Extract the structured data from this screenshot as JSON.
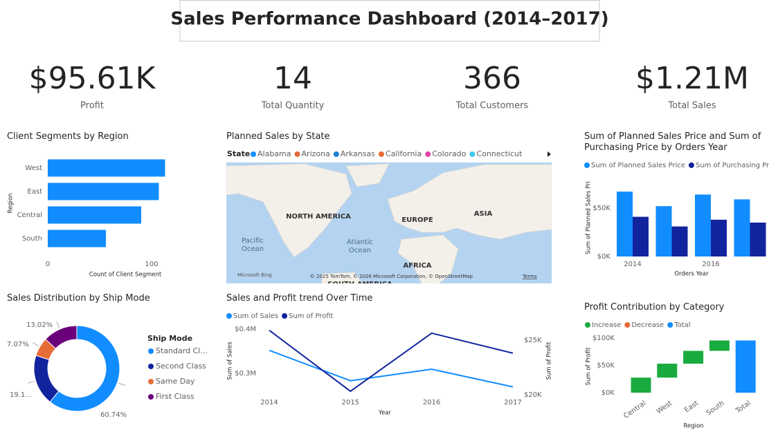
{
  "header": {
    "title": "Sales Performance Dashboard (2014–2017)"
  },
  "kpis": [
    {
      "value": "$95.61K",
      "label": "Profit"
    },
    {
      "value": "14",
      "label": "Total Quantity"
    },
    {
      "value": "366",
      "label": "Total Customers"
    },
    {
      "value": "$1.21M",
      "label": "Total Sales"
    }
  ],
  "map": {
    "title": "Planned Sales by State",
    "legend_title": "State",
    "legend": [
      {
        "name": "Alabama",
        "color": "#118dff"
      },
      {
        "name": "Arizona",
        "color": "#e66c37"
      },
      {
        "name": "Arkansas",
        "color": "#1b7fd6"
      },
      {
        "name": "California",
        "color": "#e66c37"
      },
      {
        "name": "Colorado",
        "color": "#e044a7"
      },
      {
        "name": "Connecticut",
        "color": "#41c8f0"
      }
    ],
    "labels": {
      "north_america": "NORTH AMERICA",
      "europe": "EUROPE",
      "asia": "ASIA",
      "pacific": [
        "Pacific",
        "Ocean"
      ],
      "atlantic": [
        "Atlantic",
        "Ocean"
      ],
      "africa": "AFRICA",
      "south_america": "SOUTH AMERICA"
    },
    "logo": "Microsoft Bing",
    "attribution": "© 2025 TomTom, © 2026 Microsoft Corporation, © OpenStreetMap",
    "terms": "Terms"
  },
  "chart_data": [
    {
      "type": "hbar",
      "title": "Client Segments by Region",
      "categories": [
        "West",
        "East",
        "Central",
        "South"
      ],
      "values": [
        113,
        107,
        90,
        56
      ],
      "color": "#118dff",
      "xlim": [
        0,
        115
      ],
      "xticks": [
        0,
        100
      ],
      "x_label": "Count of Client Segment",
      "y_label": "Region"
    },
    {
      "type": "grouped_bar",
      "title": "Sum of Planned Sales Price and Sum of Purchasing Price by Orders Year",
      "categories": [
        "2014",
        null,
        "2016",
        null
      ],
      "series": [
        {
          "name": "Sum of Planned Sales Price",
          "color": "#118dff",
          "values": [
            67000,
            52000,
            64000,
            59000
          ]
        },
        {
          "name": "Sum of Purchasing Pri...",
          "color": "#12239e",
          "values": [
            41000,
            31000,
            38000,
            35000
          ]
        }
      ],
      "ylim": [
        0,
        81000
      ],
      "yticks": [
        {
          "value": 0,
          "label": "$0K"
        },
        {
          "value": 50000,
          "label": "$50K"
        }
      ],
      "x_label": "Orders Year",
      "y_label": "Sum of Planned Sales Pri"
    },
    {
      "type": "donut",
      "title": "Sales Distribution by Ship Mode",
      "legend_title": "Ship Mode",
      "categories": [
        "Standard Cl...",
        "Second Class",
        "Same Day",
        "First Class"
      ],
      "values": [
        60.74,
        19.17,
        7.07,
        13.02
      ],
      "value_labels": [
        "60.74%",
        "19.1...",
        "7.07%",
        "13.02%"
      ],
      "colors": [
        "#118dff",
        "#12239e",
        "#e66c37",
        "#6b007b"
      ]
    },
    {
      "type": "line",
      "title": "Sales and Profit trend Over Time",
      "categories": [
        "2014",
        "2015",
        "2016",
        "2017"
      ],
      "series": [
        {
          "name": "Sum of Sales",
          "color": "#118dff",
          "values": [
            351600,
            283000,
            309000,
            269000
          ]
        },
        {
          "name": "Sum of Profit",
          "color": "#12239e",
          "axis": "y2",
          "values": [
            25890,
            20320,
            25630,
            23800
          ]
        }
      ],
      "ylim": [
        245000,
        417000
      ],
      "yticks": [
        {
          "value": 300000,
          "label": "$0.3M"
        },
        {
          "value": 400000,
          "label": "$0.4M"
        }
      ],
      "y2lim": [
        19750,
        26700
      ],
      "y2ticks": [
        {
          "value": 20000,
          "label": "$20K"
        },
        {
          "value": 25000,
          "label": "$25K"
        }
      ],
      "x_label": "Year",
      "y_label": "Sum of Sales",
      "y2_label": "Sum of Profit"
    },
    {
      "type": "waterfall",
      "title": "Profit Contribution by Category",
      "categories": [
        "Central",
        "West",
        "East",
        "South",
        "Total"
      ],
      "values": [
        27600,
        25500,
        23500,
        19000,
        95610
      ],
      "legend": [
        {
          "name": "Increase",
          "color": "#1aab40"
        },
        {
          "name": "Decrease",
          "color": "#e66c37"
        },
        {
          "name": "Total",
          "color": "#118dff"
        }
      ],
      "ylim": [
        0,
        108000
      ],
      "yticks": [
        {
          "value": 0,
          "label": "$0K"
        },
        {
          "value": 50000,
          "label": "$50K"
        },
        {
          "value": 100000,
          "label": "$100K"
        }
      ],
      "x_label": "Region",
      "y_label": "Sum of Profit"
    }
  ]
}
